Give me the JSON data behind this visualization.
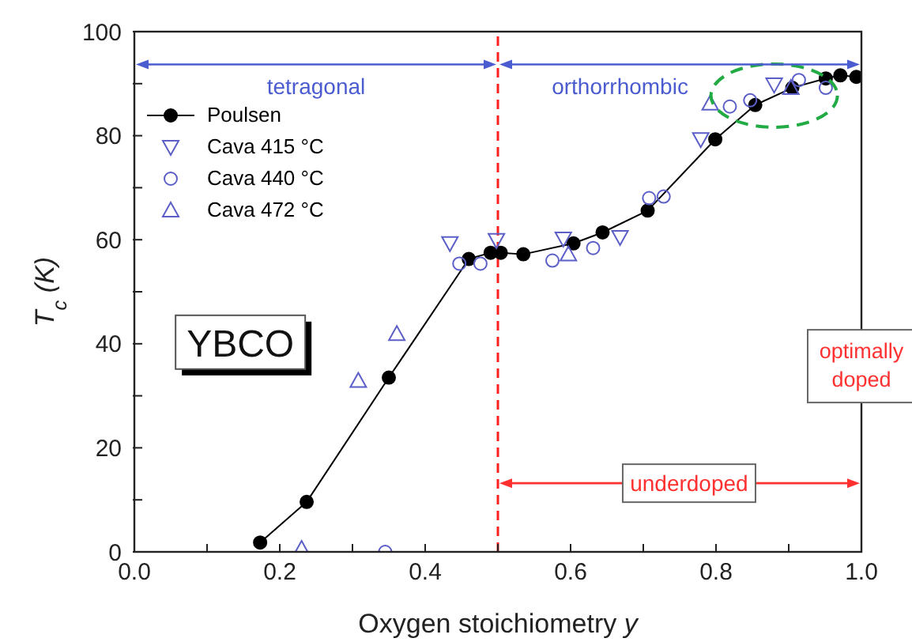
{
  "chart_data": {
    "type": "scatter",
    "xlabel": "Oxygen stoichiometry y",
    "ylabel": "T$_{c}$ (K)",
    "xlim": [
      0,
      1
    ],
    "ylim": [
      0,
      100
    ],
    "xticks": [
      {
        "value": 0,
        "label": "0.0"
      },
      {
        "value": 0.1,
        "label": null
      },
      0.2,
      {
        "value": 0.3,
        "label": null
      },
      0.4,
      {
        "value": 0.5,
        "label": null
      },
      0.6,
      {
        "value": 0.7,
        "label": null
      },
      0.8,
      {
        "value": 0.9,
        "label": null
      },
      {
        "value": 1,
        "label": "1.0"
      }
    ],
    "yticks": [
      0,
      {
        "value": 10,
        "label": null
      },
      20,
      {
        "value": 30,
        "label": null
      },
      40,
      {
        "value": 50,
        "label": null
      },
      60,
      {
        "value": 70,
        "label": null
      },
      80,
      {
        "value": 90,
        "label": null
      },
      100
    ],
    "grid": false,
    "legend": "top left",
    "series": [
      {
        "name": "Poulsen",
        "type": "line",
        "marker": "circle",
        "color": "#000000",
        "x": [
          0.173,
          0.237,
          0.35,
          0.46,
          0.49,
          0.504,
          0.535,
          0.604,
          0.644,
          0.706,
          0.799,
          0.854,
          0.905,
          0.951,
          0.971,
          0.993
        ],
        "values": [
          1.8,
          9.6,
          33.5,
          56.3,
          57.5,
          57.5,
          57.2,
          59.3,
          61.4,
          65.6,
          79.3,
          85.9,
          89.2,
          91,
          91.6,
          91.3
        ]
      },
      {
        "name": "Cava 415 °C",
        "type": "scatter",
        "marker": "triangle_down",
        "color": "#5b5fc7",
        "x": [
          0.434,
          0.498,
          0.59,
          0.668,
          0.779,
          0.88
        ],
        "values": [
          59.3,
          59.9,
          60.2,
          60.5,
          79.3,
          89.8
        ]
      },
      {
        "name": "Cava 440 °C",
        "type": "scatter",
        "marker": "circle",
        "color": "#5b5fc7",
        "x": [
          0.345,
          0.447,
          0.476,
          0.575,
          0.631,
          0.708,
          0.728,
          0.819,
          0.847,
          0.914,
          0.951
        ],
        "values": [
          0,
          55.4,
          55.4,
          56,
          58.4,
          68,
          68.3,
          85.6,
          86.8,
          90.7,
          89.2
        ]
      },
      {
        "name": "Cava 472 °C",
        "type": "scatter",
        "marker": "triangle",
        "color": "#5b5fc7",
        "x": [
          0.23,
          0.308,
          0.361,
          0.597,
          0.792,
          0.903
        ],
        "values": [
          0.6,
          32.9,
          41.9,
          57.2,
          86.2,
          89.2
        ]
      }
    ],
    "ref_lines": [
      {
        "axis": "x",
        "value": 0.5,
        "color": "#ff2020",
        "line_style": "dashed"
      }
    ],
    "annotations": [
      "tetragonal",
      "orthorrhombic",
      "YBCO",
      "underdoped",
      "optimally doped"
    ]
  }
}
